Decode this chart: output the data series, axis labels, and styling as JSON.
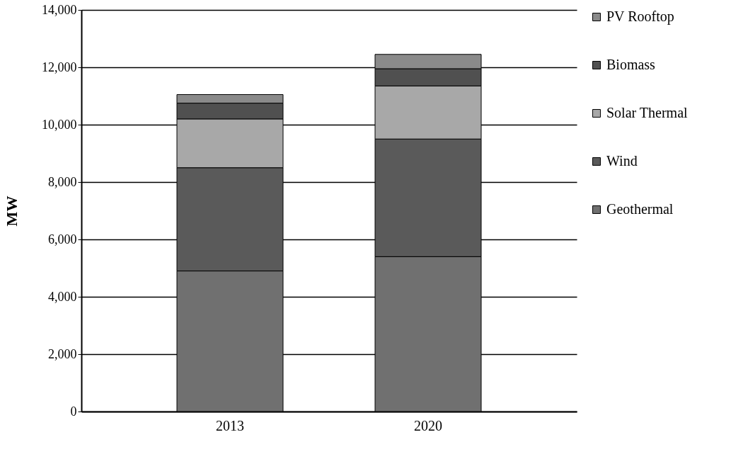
{
  "chart_data": {
    "type": "bar",
    "stacked": true,
    "ylabel": "MW",
    "categories": [
      "2013",
      "2020"
    ],
    "series": [
      {
        "name": "Geothermal",
        "color": "#707070",
        "values": [
          4900,
          5400
        ]
      },
      {
        "name": "Wind",
        "color": "#5a5a5a",
        "values": [
          3600,
          4100
        ]
      },
      {
        "name": "Solar Thermal",
        "color": "#a8a8a8",
        "values": [
          1700,
          1850
        ]
      },
      {
        "name": "Biomass",
        "color": "#505050",
        "values": [
          550,
          600
        ]
      },
      {
        "name": "PV Rooftop",
        "color": "#8a8a8a",
        "values": [
          300,
          500
        ]
      }
    ],
    "ylim": [
      0,
      14000
    ],
    "yticks": [
      0,
      {
        "value": 2000,
        "label": "2,000"
      },
      {
        "value": 4000,
        "label": "4,000"
      },
      {
        "value": 6000,
        "label": "6,000"
      },
      {
        "value": 8000,
        "label": "8,000"
      },
      {
        "value": 10000,
        "label": "10,000"
      },
      {
        "value": 12000,
        "label": "12,000"
      },
      {
        "value": 14000,
        "label": "14,000"
      }
    ],
    "grid": "y",
    "legend": "right"
  }
}
